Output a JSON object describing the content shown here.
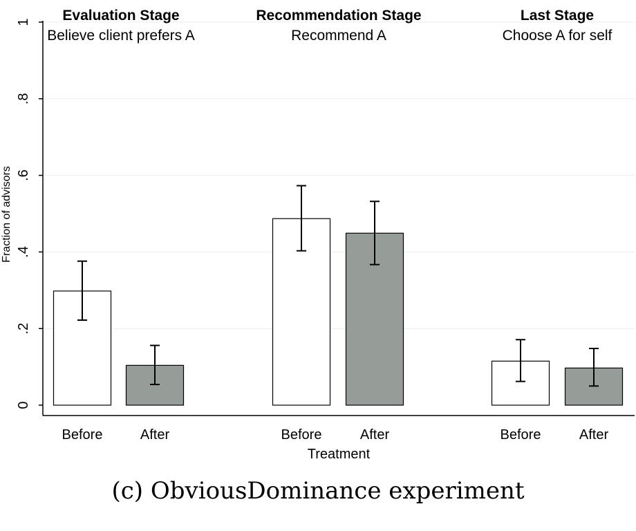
{
  "chart_data": {
    "type": "bar",
    "ylabel": "Fraction of advisors",
    "xlabel": "Treatment",
    "ylim": [
      0,
      1
    ],
    "yticks": [
      0,
      0.2,
      0.4,
      0.6,
      0.8,
      1
    ],
    "ytick_labels": [
      "0",
      ".2",
      ".4",
      ".6",
      ".8",
      "1"
    ],
    "grid": true,
    "colors": {
      "Before": "#ffffff",
      "After": "#969d99"
    },
    "panels": [
      {
        "title": "Evaluation Stage",
        "subtitle": "Believe client prefers A",
        "categories": [
          "Before",
          "After"
        ],
        "values": [
          0.298,
          0.104
        ],
        "ci_low": [
          0.222,
          0.054
        ],
        "ci_high": [
          0.376,
          0.156
        ]
      },
      {
        "title": "Recommendation Stage",
        "subtitle": "Recommend A",
        "categories": [
          "Before",
          "After"
        ],
        "values": [
          0.487,
          0.449
        ],
        "ci_low": [
          0.403,
          0.367
        ],
        "ci_high": [
          0.573,
          0.532
        ]
      },
      {
        "title": "Last Stage",
        "subtitle": "Choose A for self",
        "categories": [
          "Before",
          "After"
        ],
        "values": [
          0.115,
          0.097
        ],
        "ci_low": [
          0.062,
          0.05
        ],
        "ci_high": [
          0.171,
          0.148
        ]
      }
    ]
  },
  "caption": "(c) ObviousDominance experiment"
}
